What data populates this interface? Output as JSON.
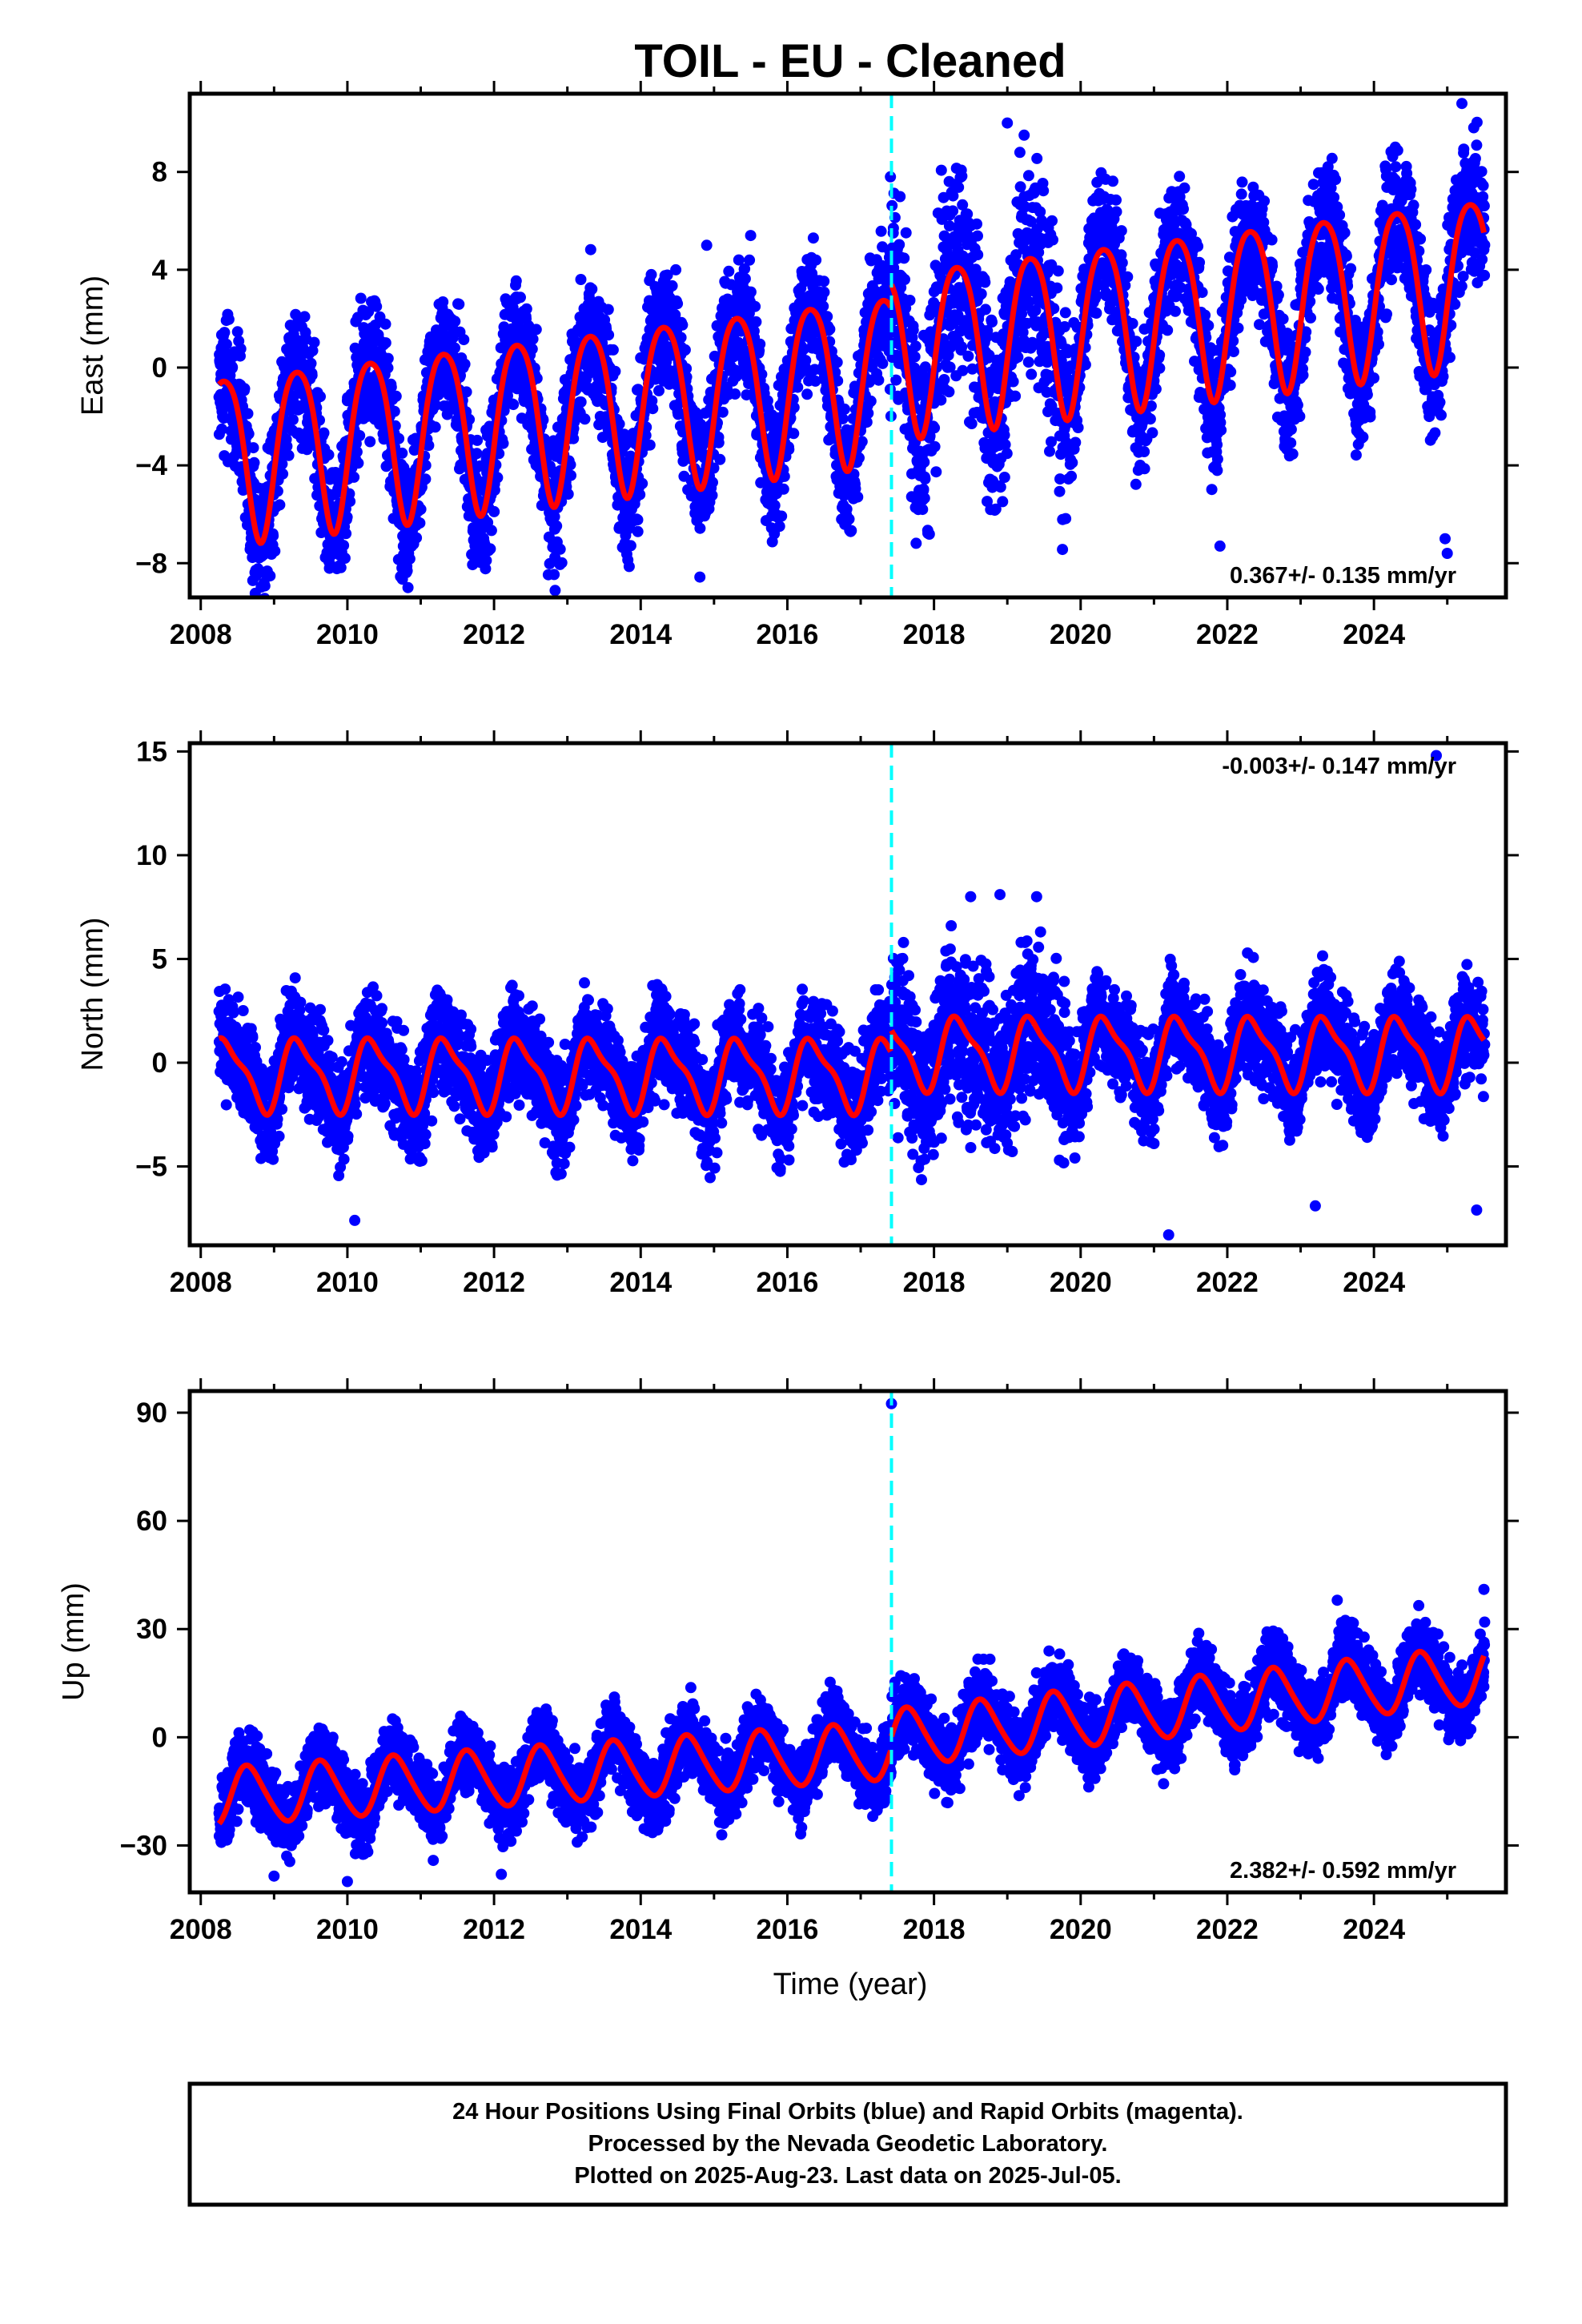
{
  "title": "TOIL  - EU - Cleaned",
  "colors": {
    "points": "#0000ff",
    "fit": "#ff0000",
    "event_line": "#00ffff",
    "frame": "#000000"
  },
  "xlabel": "Time (year)",
  "footer": {
    "line1": "24 Hour Positions Using Final Orbits (blue) and Rapid Orbits (magenta).",
    "line2": "Processed by the Nevada Geodetic Laboratory.",
    "line3": "Plotted on 2025-Aug-23. Last data on 2025-Jul-05."
  },
  "chart_data": [
    {
      "type": "scatter",
      "ylabel": "East (mm)",
      "rate_label": "0.367+/- 0.135 mm/yr",
      "rate_position": "bottom-right",
      "xlim": [
        2007.85,
        2025.8
      ],
      "ylim": [
        -9.4,
        11.2
      ],
      "xticks": [
        2008,
        2010,
        2012,
        2014,
        2016,
        2018,
        2020,
        2022,
        2024
      ],
      "yticks": [
        -8,
        -4,
        0,
        4,
        8
      ],
      "ytick_labels": [
        "−8",
        "−4",
        "0",
        "4",
        "8"
      ],
      "event_line_x": 2017.42,
      "data_range": [
        2008.25,
        2025.51
      ],
      "fit": {
        "segments": [
          {
            "start": 2008.25,
            "end": 2017.42,
            "offset": -1.75,
            "trend": 0.367,
            "t0": 2013.0
          },
          {
            "start": 2017.42,
            "end": 2025.51,
            "offset": 2.35,
            "trend": 0.367,
            "t0": 2021.5
          }
        ],
        "annual_cos": -1.4,
        "annual_sin": 3.1,
        "semi_cos": 0.3,
        "semi_sin": 0.4
      },
      "noise_sd": 1.3,
      "outliers": [
        [
          2025.2,
          10.8
        ],
        [
          2021.9,
          -7.3
        ],
        [
          2025.0,
          -7.6
        ],
        [
          2024.97,
          -7.0
        ],
        [
          2019.0,
          10.0
        ],
        [
          2015.5,
          5.4
        ],
        [
          2014.9,
          5.0
        ]
      ]
    },
    {
      "type": "scatter",
      "ylabel": "North (mm)",
      "rate_label": "-0.003+/- 0.147 mm/yr",
      "rate_position": "top-right",
      "xlim": [
        2007.85,
        2025.8
      ],
      "ylim": [
        -8.8,
        15.4
      ],
      "xticks": [
        2008,
        2010,
        2012,
        2014,
        2016,
        2018,
        2020,
        2022,
        2024
      ],
      "yticks": [
        -5,
        0,
        5,
        10,
        15
      ],
      "ytick_labels": [
        "−5",
        "0",
        "5",
        "10",
        "15"
      ],
      "event_line_x": 2017.42,
      "data_range": [
        2008.25,
        2025.51
      ],
      "fit": {
        "segments": [
          {
            "start": 2008.25,
            "end": 2017.42,
            "offset": -0.55,
            "trend": -0.003,
            "t0": 2013.0
          },
          {
            "start": 2017.42,
            "end": 2025.51,
            "offset": 0.5,
            "trend": -0.003,
            "t0": 2021.5
          }
        ],
        "annual_cos": -1.0,
        "annual_sin": 1.3,
        "semi_cos": -0.4,
        "semi_sin": 0.3
      },
      "noise_sd": 1.2,
      "outliers": [
        [
          2024.85,
          14.8
        ],
        [
          2021.2,
          -8.3
        ],
        [
          2010.1,
          -7.6
        ],
        [
          2025.4,
          -7.1
        ],
        [
          2023.2,
          -6.9
        ],
        [
          2018.9,
          8.1
        ],
        [
          2019.4,
          8.0
        ],
        [
          2018.5,
          8.0
        ]
      ]
    },
    {
      "type": "scatter",
      "ylabel": "Up (mm)",
      "rate_label": "2.382+/- 0.592 mm/yr",
      "rate_position": "bottom-right",
      "xlim": [
        2007.85,
        2025.8
      ],
      "ylim": [
        -43,
        96
      ],
      "xticks": [
        2008,
        2010,
        2012,
        2014,
        2016,
        2018,
        2020,
        2022,
        2024
      ],
      "yticks": [
        -30,
        0,
        30,
        60,
        90
      ],
      "ytick_labels": [
        "−30",
        "0",
        "30",
        "60",
        "90"
      ],
      "event_line_x": 2017.42,
      "data_range": [
        2008.25,
        2025.51
      ],
      "fit": {
        "segments": [
          {
            "start": 2008.25,
            "end": 2017.42,
            "offset": -10.0,
            "trend": 1.4,
            "t0": 2013.0
          },
          {
            "start": 2017.42,
            "end": 2025.51,
            "offset": 8.5,
            "trend": 2.2,
            "t0": 2021.5
          }
        ],
        "annual_cos": -4.5,
        "annual_sin": -6.5,
        "semi_cos": 0.8,
        "semi_sin": 0.6
      },
      "noise_sd": 5.0,
      "outliers": [
        [
          2017.42,
          92.5
        ],
        [
          2010.0,
          -40.0
        ],
        [
          2012.1,
          -38.0
        ],
        [
          2009.0,
          -38.5
        ],
        [
          2025.5,
          41.0
        ],
        [
          2023.5,
          38.0
        ]
      ]
    }
  ]
}
